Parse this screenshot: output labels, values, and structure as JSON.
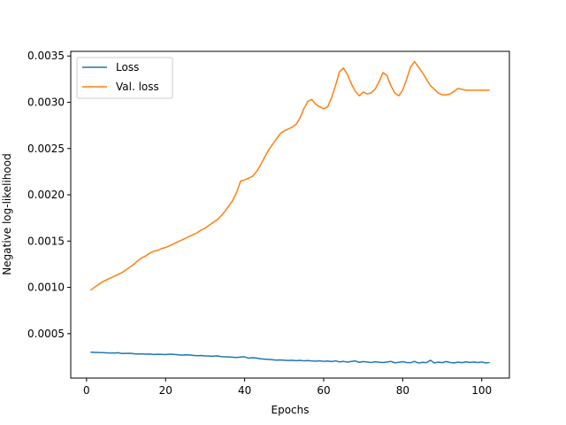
{
  "chart_data": {
    "type": "line",
    "title": "",
    "xlabel": "Epochs",
    "ylabel": "Negative log-likelihood",
    "xlim": [
      -4,
      107
    ],
    "ylim": [
      2e-05,
      0.00355
    ],
    "x_ticks": [
      0,
      20,
      40,
      60,
      80,
      100
    ],
    "x_tick_labels": [
      "0",
      "20",
      "40",
      "60",
      "80",
      "100"
    ],
    "y_ticks": [
      0.0005,
      0.001,
      0.0015,
      0.002,
      0.0025,
      0.003,
      0.0035
    ],
    "y_tick_labels": [
      "0.0005",
      "0.0010",
      "0.0015",
      "0.0020",
      "0.0025",
      "0.0030",
      "0.0035"
    ],
    "grid": false,
    "legend_position": "top-left",
    "series": [
      {
        "name": "Loss",
        "color": "#1f77b4",
        "x": [
          1,
          2,
          3,
          4,
          5,
          6,
          7,
          8,
          9,
          10,
          11,
          12,
          13,
          14,
          15,
          16,
          17,
          18,
          19,
          20,
          21,
          22,
          23,
          24,
          25,
          26,
          27,
          28,
          29,
          30,
          31,
          32,
          33,
          34,
          35,
          36,
          37,
          38,
          39,
          40,
          41,
          42,
          43,
          44,
          45,
          46,
          47,
          48,
          49,
          50,
          51,
          52,
          53,
          54,
          55,
          56,
          57,
          58,
          59,
          60,
          61,
          62,
          63,
          64,
          65,
          66,
          67,
          68,
          69,
          70,
          71,
          72,
          73,
          74,
          75,
          76,
          77,
          78,
          79,
          80,
          81,
          82,
          83,
          84,
          85,
          86,
          87,
          88,
          89,
          90,
          91,
          92,
          93,
          94,
          95,
          96,
          97,
          98,
          99,
          100,
          101,
          102
        ],
        "y": [
          0.0003,
          0.000298,
          0.000296,
          0.000295,
          0.000293,
          0.000292,
          0.00029,
          0.000294,
          0.000285,
          0.000287,
          0.000288,
          0.000283,
          0.00028,
          0.000282,
          0.000278,
          0.00028,
          0.000275,
          0.000277,
          0.000276,
          0.000274,
          0.000278,
          0.000276,
          0.000272,
          0.000268,
          0.000271,
          0.00027,
          0.000265,
          0.000262,
          0.000264,
          0.000259,
          0.000258,
          0.000255,
          0.00026,
          0.000252,
          0.00025,
          0.000248,
          0.000245,
          0.000242,
          0.000247,
          0.000249,
          0.000235,
          0.00024,
          0.000236,
          0.000228,
          0.000225,
          0.000222,
          0.000218,
          0.000214,
          0.000216,
          0.000213,
          0.00021,
          0.000212,
          0.000208,
          0.000211,
          0.000206,
          0.000209,
          0.000205,
          0.000203,
          0.000207,
          0.000201,
          0.000204,
          0.000198,
          0.000206,
          0.000195,
          0.0002,
          0.000192,
          0.000199,
          0.000205,
          0.00019,
          0.000198,
          0.000193,
          0.000188,
          0.000196,
          0.000191,
          0.000187,
          0.000193,
          0.0002,
          0.000185,
          0.00019,
          0.000197,
          0.000188,
          0.000186,
          0.0002,
          0.000182,
          0.00019,
          0.000186,
          0.000212,
          0.000184,
          0.000192,
          0.000186,
          0.000198,
          0.000188,
          0.000184,
          0.000192,
          0.000186,
          0.000195,
          0.000189,
          0.000193,
          0.000187,
          0.000194,
          0.000183,
          0.000188
        ]
      },
      {
        "name": "Val. loss",
        "color": "#ff7f0e",
        "x": [
          1,
          2,
          3,
          4,
          5,
          6,
          7,
          8,
          9,
          10,
          11,
          12,
          13,
          14,
          15,
          16,
          17,
          18,
          19,
          20,
          21,
          22,
          23,
          24,
          25,
          26,
          27,
          28,
          29,
          30,
          31,
          32,
          33,
          34,
          35,
          36,
          37,
          38,
          39,
          40,
          41,
          42,
          43,
          44,
          45,
          46,
          47,
          48,
          49,
          50,
          51,
          52,
          53,
          54,
          55,
          56,
          57,
          58,
          59,
          60,
          61,
          62,
          63,
          64,
          65,
          66,
          67,
          68,
          69,
          70,
          71,
          72,
          73,
          74,
          75,
          76,
          77,
          78,
          79,
          80,
          81,
          82,
          83,
          84,
          85,
          86,
          87,
          88,
          89,
          90,
          91,
          92,
          93,
          94,
          95,
          96,
          97,
          98,
          99,
          100,
          101,
          102
        ],
        "y": [
          0.00097,
          0.001,
          0.00103,
          0.00106,
          0.00108,
          0.0011,
          0.00112,
          0.00114,
          0.00116,
          0.00119,
          0.00122,
          0.00125,
          0.00129,
          0.00132,
          0.00134,
          0.00137,
          0.00139,
          0.0014,
          0.00142,
          0.00143,
          0.00145,
          0.00147,
          0.00149,
          0.00151,
          0.00153,
          0.00155,
          0.00157,
          0.00159,
          0.00162,
          0.00164,
          0.00167,
          0.0017,
          0.00173,
          0.00177,
          0.00182,
          0.00188,
          0.00194,
          0.00203,
          0.00215,
          0.00216,
          0.00218,
          0.0022,
          0.00225,
          0.00232,
          0.0024,
          0.00248,
          0.00254,
          0.0026,
          0.00266,
          0.00269,
          0.00271,
          0.00273,
          0.00276,
          0.00283,
          0.00293,
          0.00301,
          0.00303,
          0.00298,
          0.00295,
          0.00293,
          0.00295,
          0.00305,
          0.00318,
          0.00333,
          0.00337,
          0.0033,
          0.0032,
          0.00312,
          0.00307,
          0.00311,
          0.00309,
          0.0031,
          0.00314,
          0.00322,
          0.00332,
          0.00329,
          0.00318,
          0.0031,
          0.00307,
          0.00313,
          0.00325,
          0.00338,
          0.00344,
          0.00338,
          0.00332,
          0.00325,
          0.00318,
          0.00314,
          0.0031,
          0.00308,
          0.00308,
          0.00309,
          0.00312,
          0.00315,
          0.00314,
          0.00313,
          0.00313,
          0.00313,
          0.00313,
          0.00313,
          0.00313,
          0.00313
        ]
      }
    ]
  }
}
